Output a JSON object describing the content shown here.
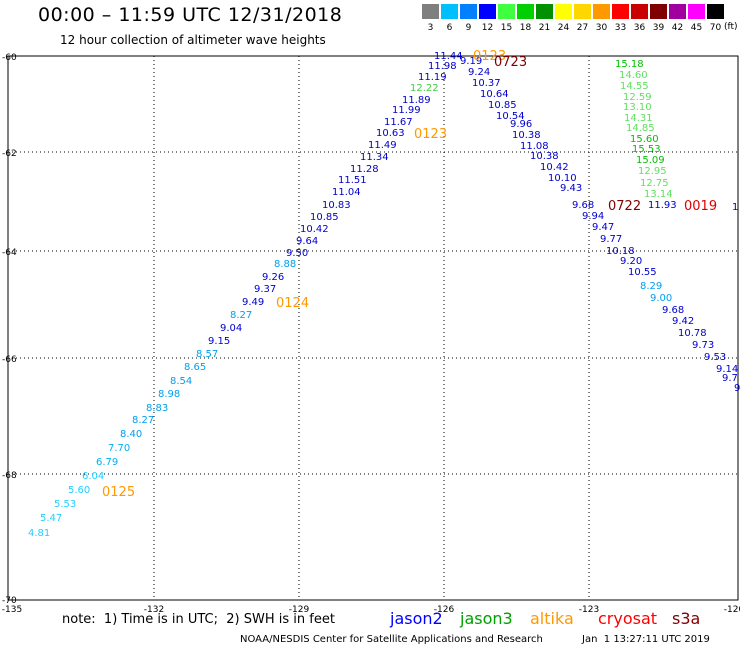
{
  "header": {
    "title": "00:00 – 11:59 UTC 12/31/2018",
    "subtitle": "12 hour collection of altimeter wave heights"
  },
  "legend": {
    "unit": "(ft)",
    "bins": [
      {
        "label": "3",
        "color": "#7f7f7f"
      },
      {
        "label": "6",
        "color": "#00bfff"
      },
      {
        "label": "9",
        "color": "#0080ff"
      },
      {
        "label": "12",
        "color": "#0000ff"
      },
      {
        "label": "15",
        "color": "#40ff40"
      },
      {
        "label": "18",
        "color": "#00d000"
      },
      {
        "label": "21",
        "color": "#009000"
      },
      {
        "label": "24",
        "color": "#ffff00"
      },
      {
        "label": "27",
        "color": "#ffd700"
      },
      {
        "label": "30",
        "color": "#ff9900"
      },
      {
        "label": "33",
        "color": "#ff0000"
      },
      {
        "label": "36",
        "color": "#c80000"
      },
      {
        "label": "39",
        "color": "#800000"
      },
      {
        "label": "42",
        "color": "#a000a0"
      },
      {
        "label": "45",
        "color": "#ff00ff"
      },
      {
        "label": "70",
        "color": "#000000"
      }
    ]
  },
  "axes": {
    "lon_labels": [
      "-135",
      "-132",
      "-129",
      "-126",
      "-123",
      "-120"
    ],
    "lat_labels": [
      "-60",
      "-62",
      "-64",
      "-66",
      "-68",
      "-70"
    ]
  },
  "tracks": [
    {
      "id": "track-west",
      "points": [
        {
          "t": "4.81",
          "c": "#20d0ff"
        },
        {
          "t": "5.47",
          "c": "#20d0ff"
        },
        {
          "t": "5.53",
          "c": "#20d0ff"
        },
        {
          "t": "5.60",
          "c": "#20d0ff"
        },
        {
          "t": "6.04",
          "c": "#20d0ff"
        },
        {
          "t": "6.79",
          "c": "#00b0f0"
        },
        {
          "t": "7.70",
          "c": "#00b0f0"
        },
        {
          "t": "8.40",
          "c": "#00a0f0"
        },
        {
          "t": "8.27",
          "c": "#00a0f0"
        },
        {
          "t": "8.83",
          "c": "#00a0f0"
        },
        {
          "t": "8.98",
          "c": "#00a0f0"
        },
        {
          "t": "8.54",
          "c": "#00a0f0"
        },
        {
          "t": "8.65",
          "c": "#00a0f0"
        },
        {
          "t": "8.57",
          "c": "#00a0f0"
        },
        {
          "t": "9.15",
          "c": "#0000d0"
        },
        {
          "t": "9.04",
          "c": "#0000d0"
        },
        {
          "t": "8.27",
          "c": "#00a0f0"
        },
        {
          "t": "9.49",
          "c": "#0000d0"
        },
        {
          "t": "9.37",
          "c": "#0000d0"
        },
        {
          "t": "9.26",
          "c": "#0000d0"
        },
        {
          "t": "8.88",
          "c": "#00a0f0"
        },
        {
          "t": "9.50",
          "c": "#0000d0"
        },
        {
          "t": "9.64",
          "c": "#0000d0"
        },
        {
          "t": "10.42",
          "c": "#0000d0"
        },
        {
          "t": "10.85",
          "c": "#0000d0"
        },
        {
          "t": "10.83",
          "c": "#0000d0"
        },
        {
          "t": "11.04",
          "c": "#0000d0"
        },
        {
          "t": "11.51",
          "c": "#0000d0"
        },
        {
          "t": "11.28",
          "c": "#0000d0"
        },
        {
          "t": "11.34",
          "c": "#0000d0"
        },
        {
          "t": "11.49",
          "c": "#0000d0"
        },
        {
          "t": "10.63",
          "c": "#0000d0"
        },
        {
          "t": "11.67",
          "c": "#0000d0"
        },
        {
          "t": "11.99",
          "c": "#0000d0"
        },
        {
          "t": "11.89",
          "c": "#0000d0"
        },
        {
          "t": "12.22",
          "c": "#40d040"
        },
        {
          "t": "11.19",
          "c": "#0000d0"
        },
        {
          "t": "11.98",
          "c": "#0000d0"
        },
        {
          "t": "11.44",
          "c": "#0000d0"
        }
      ]
    },
    {
      "id": "track-east",
      "points": [
        {
          "t": "9.19",
          "c": "#0000d0"
        },
        {
          "t": "9.24",
          "c": "#0000d0"
        },
        {
          "t": "10.37",
          "c": "#0000d0"
        },
        {
          "t": "10.64",
          "c": "#0000d0"
        },
        {
          "t": "10.85",
          "c": "#0000d0"
        },
        {
          "t": "10.54",
          "c": "#0000d0"
        },
        {
          "t": "9.96",
          "c": "#0000d0"
        },
        {
          "t": "10.38",
          "c": "#0000d0"
        },
        {
          "t": "11.08",
          "c": "#0000d0"
        },
        {
          "t": "10.38",
          "c": "#0000d0"
        },
        {
          "t": "10.42",
          "c": "#0000d0"
        },
        {
          "t": "10.10",
          "c": "#0000d0"
        },
        {
          "t": "9.43",
          "c": "#0000d0"
        },
        {
          "t": "9.68",
          "c": "#0000d0"
        },
        {
          "t": "9.94",
          "c": "#0000d0"
        },
        {
          "t": "9.47",
          "c": "#0000d0"
        },
        {
          "t": "9.77",
          "c": "#0000d0"
        },
        {
          "t": "10.18",
          "c": "#0000d0"
        },
        {
          "t": "9.20",
          "c": "#0000d0"
        },
        {
          "t": "10.55",
          "c": "#0000d0"
        },
        {
          "t": "8.29",
          "c": "#00a0f0"
        },
        {
          "t": "9.00",
          "c": "#00a0f0"
        },
        {
          "t": "9.68",
          "c": "#0000d0"
        },
        {
          "t": "9.42",
          "c": "#0000d0"
        },
        {
          "t": "10.78",
          "c": "#0000d0"
        },
        {
          "t": "9.73",
          "c": "#0000d0"
        },
        {
          "t": "9.53",
          "c": "#0000d0"
        },
        {
          "t": "9.14",
          "c": "#0000d0"
        },
        {
          "t": "9.7",
          "c": "#0000d0"
        },
        {
          "t": "9",
          "c": "#0000d0"
        }
      ]
    },
    {
      "id": "track-green",
      "points": [
        {
          "t": "15.18",
          "c": "#00c000"
        },
        {
          "t": "14.60",
          "c": "#60e060"
        },
        {
          "t": "14.55",
          "c": "#60e060"
        },
        {
          "t": "12.59",
          "c": "#60e060"
        },
        {
          "t": "13.10",
          "c": "#60e060"
        },
        {
          "t": "14.31",
          "c": "#60e060"
        },
        {
          "t": "14.85",
          "c": "#60e060"
        },
        {
          "t": "15.60",
          "c": "#00c000"
        },
        {
          "t": "15.53",
          "c": "#00c000"
        },
        {
          "t": "15.09",
          "c": "#00c000"
        },
        {
          "t": "12.95",
          "c": "#60e060"
        },
        {
          "t": "12.75",
          "c": "#60e060"
        },
        {
          "t": "13.14",
          "c": "#60e060"
        }
      ]
    },
    {
      "id": "track-row",
      "points": [
        {
          "t": "11.93",
          "c": "#0000d0"
        },
        {
          "t": "1",
          "c": "#0000d0"
        }
      ]
    }
  ],
  "time_labels": [
    {
      "t": "0123",
      "c": "#ff9900"
    },
    {
      "t": "0723",
      "c": "#800000"
    },
    {
      "t": "0123",
      "c": "#ff9900"
    },
    {
      "t": "0124",
      "c": "#ff9900"
    },
    {
      "t": "0125",
      "c": "#ff9900"
    },
    {
      "t": "0722",
      "c": "#800000"
    },
    {
      "t": "0019",
      "c": "#e00000"
    }
  ],
  "footer": {
    "note": "note:  1) Time is in UTC;  2) SWH is in feet",
    "satellites": [
      {
        "name": "jason2",
        "color": "#0000ff"
      },
      {
        "name": "jason3",
        "color": "#00a000"
      },
      {
        "name": "altika",
        "color": "#ff9900"
      },
      {
        "name": "cryosat",
        "color": "#ff0000"
      },
      {
        "name": "s3a",
        "color": "#800000"
      }
    ],
    "credit": "NOAA/NESDIS Center for Satellite Applications and Research",
    "timestamp": "Jan  1 13:27:11 UTC 2019"
  }
}
